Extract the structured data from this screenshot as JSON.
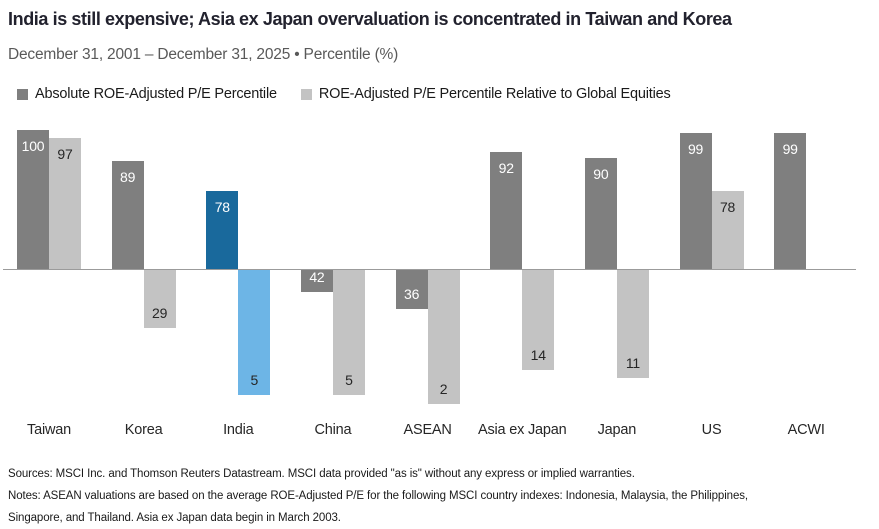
{
  "header": {
    "title": "India is still expensive; Asia ex Japan overvaluation is concentrated in Taiwan and Korea",
    "subtitle": "December 31, 2001 – December 31, 2025 • Percentile (%)"
  },
  "chart_data": {
    "type": "bar",
    "title": "India is still expensive; Asia ex Japan overvaluation is concentrated in Taiwan and Korea",
    "subtitle": "December 31, 2001 – December 31, 2025 • Percentile (%)",
    "ylabel": "Percentile (%)",
    "baseline": 50,
    "ylim": [
      0,
      100
    ],
    "grid": false,
    "legend_position": "top-left",
    "categories": [
      "Taiwan",
      "Korea",
      "India",
      "China",
      "ASEAN",
      "Asia ex Japan",
      "Japan",
      "US",
      "ACWI"
    ],
    "series": [
      {
        "name": "Absolute ROE-Adjusted P/E Percentile",
        "values": [
          100,
          89,
          78,
          42,
          36,
          92,
          90,
          99,
          99
        ]
      },
      {
        "name": "ROE-Adjusted P/E Percentile Relative to Global Equities",
        "values": [
          97,
          29,
          5,
          5,
          2,
          14,
          11,
          78,
          null
        ]
      }
    ],
    "highlight_category": "India",
    "colors": {
      "absolute": "#7f7f7f",
      "relative": "#c3c3c3",
      "absolute_highlight": "#19699c",
      "relative_highlight": "#6db5e6",
      "baseline": "#9b9b9b"
    },
    "value_label_colors": {
      "absolute": "#ffffff",
      "relative": "#262626"
    }
  },
  "footer": {
    "sources": "Sources: MSCI Inc. and Thomson Reuters Datastream. MSCI data provided \"as is\" without any express or implied warranties.",
    "notes_line1": "Notes: ASEAN valuations are based on the average ROE-Adjusted P/E for the following MSCI country indexes: Indonesia, Malaysia, the Philippines,",
    "notes_line2": "Singapore, and Thailand. Asia ex Japan data begin in March 2003."
  }
}
